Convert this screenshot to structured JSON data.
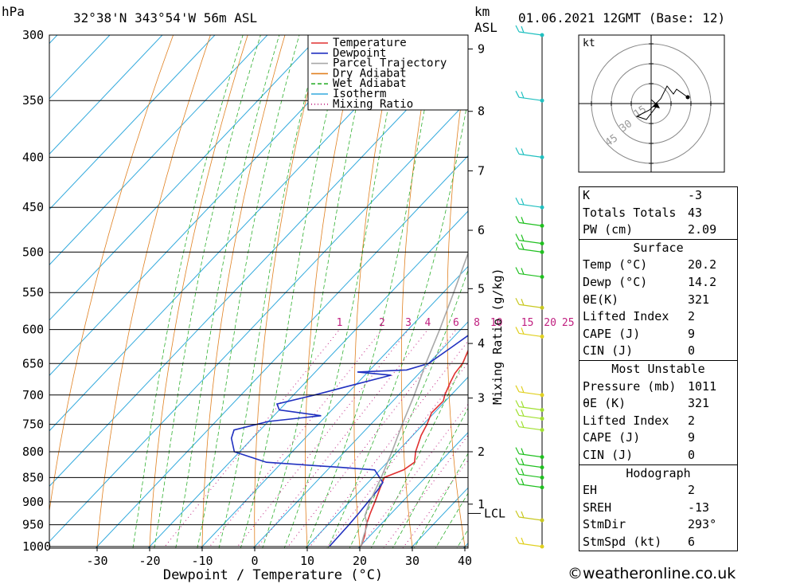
{
  "header": {
    "location": "32°38'N  343°54'W  56m  ASL",
    "datetime": "01.06.2021  12GMT  (Base: 12)",
    "pressure_unit": "hPa",
    "height_unit_1": "km",
    "height_unit_2": "ASL"
  },
  "chart_data": {
    "type": "line",
    "xlabel": "Dewpoint / Temperature (°C)",
    "ylabel": "hPa",
    "right_axis_label": "Mixing Ratio (g/kg)",
    "xlim": [
      -40,
      40
    ],
    "ylim": [
      1000,
      300
    ],
    "x_ticks": [
      -30,
      -20,
      -10,
      0,
      10,
      20,
      30,
      40
    ],
    "pressure_levels": [
      300,
      350,
      400,
      450,
      500,
      550,
      600,
      650,
      700,
      750,
      800,
      850,
      900,
      950,
      1000
    ],
    "height_ticks_km": [
      {
        "km": "1",
        "p": 905
      },
      {
        "km": "2",
        "p": 800
      },
      {
        "km": "3",
        "p": 705
      },
      {
        "km": "4",
        "p": 620
      },
      {
        "km": "5",
        "p": 545
      },
      {
        "km": "6",
        "p": 475
      },
      {
        "km": "7",
        "p": 413
      },
      {
        "km": "8",
        "p": 359
      },
      {
        "km": "9",
        "p": 310
      }
    ],
    "lcl": {
      "label": "LCL",
      "p": 925
    },
    "mixing_ratio_labels": [
      "1",
      "2",
      "3",
      "4",
      "6",
      "8",
      "10",
      "15",
      "20",
      "25"
    ],
    "mixing_ratio_values": [
      1,
      2,
      3,
      4,
      6,
      8,
      10,
      15,
      20,
      25
    ],
    "legend": [
      "Temperature",
      "Dewpoint",
      "Parcel Trajectory",
      "Dry Adiabat",
      "Wet Adiabat",
      "Isotherm",
      "Mixing Ratio"
    ],
    "legend_position": "top-right",
    "series": [
      {
        "name": "Temperature",
        "color": "#e03030",
        "points": [
          [
            1000,
            20.2
          ],
          [
            975,
            19.0
          ],
          [
            950,
            17.3
          ],
          [
            925,
            16.0
          ],
          [
            900,
            14.8
          ],
          [
            875,
            13.5
          ],
          [
            850,
            12.2
          ],
          [
            835,
            14.5
          ],
          [
            820,
            15.2
          ],
          [
            800,
            13.5
          ],
          [
            770,
            11.6
          ],
          [
            750,
            10.7
          ],
          [
            730,
            9.5
          ],
          [
            710,
            9.6
          ],
          [
            700,
            8.8
          ],
          [
            680,
            7.6
          ],
          [
            665,
            6.8
          ],
          [
            650,
            6.5
          ],
          [
            620,
            4.5
          ],
          [
            600,
            2.8
          ],
          [
            570,
            0.5
          ],
          [
            550,
            -1.0
          ],
          [
            520,
            -2.5
          ],
          [
            500,
            -3.8
          ],
          [
            480,
            -5.8
          ],
          [
            460,
            -7.0
          ],
          [
            450,
            -8.0
          ],
          [
            400,
            -14.2
          ],
          [
            350,
            -21.6
          ],
          [
            300,
            -30.5
          ]
        ]
      },
      {
        "name": "Dewpoint",
        "color": "#2030c0",
        "points": [
          [
            1000,
            14.2
          ],
          [
            950,
            14.0
          ],
          [
            925,
            13.8
          ],
          [
            900,
            13.5
          ],
          [
            875,
            13.2
          ],
          [
            860,
            12.8
          ],
          [
            835,
            9.0
          ],
          [
            830,
            2.0
          ],
          [
            820,
            -13.0
          ],
          [
            800,
            -21.0
          ],
          [
            775,
            -24.0
          ],
          [
            760,
            -25.0
          ],
          [
            745,
            -20.0
          ],
          [
            735,
            -11.0
          ],
          [
            725,
            -20.0
          ],
          [
            715,
            -21.5
          ],
          [
            700,
            -16.0
          ],
          [
            685,
            -11.0
          ],
          [
            668,
            -5.0
          ],
          [
            663,
            -12.0
          ],
          [
            660,
            -3.0
          ],
          [
            650,
            0.0
          ],
          [
            625,
            1.5
          ],
          [
            600,
            3.0
          ],
          [
            590,
            3.2
          ],
          [
            580,
            0.0
          ],
          [
            560,
            -0.5
          ],
          [
            550,
            -0.8
          ],
          [
            540,
            -2.0
          ],
          [
            525,
            -6.0
          ],
          [
            510,
            -9.5
          ],
          [
            500,
            -7.5
          ],
          [
            485,
            -5.5
          ],
          [
            470,
            -5.2
          ],
          [
            460,
            -10.0
          ],
          [
            455,
            -18.0
          ],
          [
            450,
            -20.5
          ],
          [
            400,
            -26.0
          ],
          [
            350,
            -28.5
          ],
          [
            300,
            -32.0
          ]
        ]
      },
      {
        "name": "Parcel Trajectory",
        "color": "#a8a8a8",
        "points": [
          [
            1000,
            20.2
          ],
          [
            975,
            18.8
          ],
          [
            950,
            17.5
          ],
          [
            930,
            15.4
          ],
          [
            900,
            13.8
          ],
          [
            850,
            11.6
          ],
          [
            800,
            9.0
          ],
          [
            750,
            6.0
          ],
          [
            700,
            3.0
          ],
          [
            650,
            -0.5
          ],
          [
            600,
            -4.0
          ],
          [
            550,
            -8.0
          ],
          [
            500,
            -12.5
          ],
          [
            450,
            -17.5
          ],
          [
            400,
            -23.5
          ],
          [
            350,
            -30.5
          ],
          [
            300,
            -38.5
          ]
        ]
      }
    ],
    "wind_barbs": [
      {
        "p": 300,
        "color": "#20c0c0"
      },
      {
        "p": 350,
        "color": "#20c0c0"
      },
      {
        "p": 400,
        "color": "#20c0c0"
      },
      {
        "p": 450,
        "color": "#20c0c0"
      },
      {
        "p": 470,
        "color": "#20c020"
      },
      {
        "p": 490,
        "color": "#20c020"
      },
      {
        "p": 500,
        "color": "#20c020"
      },
      {
        "p": 530,
        "color": "#20c020"
      },
      {
        "p": 570,
        "color": "#c8c820"
      },
      {
        "p": 610,
        "color": "#e0d020"
      },
      {
        "p": 700,
        "color": "#e0d020"
      },
      {
        "p": 725,
        "color": "#a0e030"
      },
      {
        "p": 740,
        "color": "#a0e030"
      },
      {
        "p": 760,
        "color": "#a0e030"
      },
      {
        "p": 810,
        "color": "#20c020"
      },
      {
        "p": 830,
        "color": "#20c020"
      },
      {
        "p": 850,
        "color": "#20c020"
      },
      {
        "p": 870,
        "color": "#20c020"
      },
      {
        "p": 940,
        "color": "#c8c820"
      },
      {
        "p": 1000,
        "color": "#e0d020"
      }
    ]
  },
  "hodograph": {
    "unit": "kt",
    "ring_labels": [
      "15",
      "30",
      "45"
    ]
  },
  "indices": [
    {
      "label": "K",
      "value": "-3"
    },
    {
      "label": "Totals Totals",
      "value": "43"
    },
    {
      "label": "PW (cm)",
      "value": "2.09"
    }
  ],
  "surface": {
    "title": "Surface",
    "rows": [
      {
        "label": "Temp (°C)",
        "value": "20.2"
      },
      {
        "label": "Dewp (°C)",
        "value": "14.2"
      },
      {
        "label": "θE(K)",
        "value": "321"
      },
      {
        "label": "Lifted Index",
        "value": "2"
      },
      {
        "label": "CAPE (J)",
        "value": "9"
      },
      {
        "label": "CIN (J)",
        "value": "0"
      }
    ]
  },
  "most_unstable": {
    "title": "Most Unstable",
    "rows": [
      {
        "label": "Pressure (mb)",
        "value": "1011"
      },
      {
        "label": "θE (K)",
        "value": "321"
      },
      {
        "label": "Lifted Index",
        "value": "2"
      },
      {
        "label": "CAPE (J)",
        "value": "9"
      },
      {
        "label": "CIN (J)",
        "value": "0"
      }
    ]
  },
  "hodograph_table": {
    "title": "Hodograph",
    "rows": [
      {
        "label": "EH",
        "value": "2"
      },
      {
        "label": "SREH",
        "value": "-13"
      },
      {
        "label": "StmDir",
        "value": "293°"
      },
      {
        "label": "StmSpd (kt)",
        "value": "6"
      }
    ]
  },
  "footer": {
    "credit": "©weatheronline.co.uk"
  }
}
